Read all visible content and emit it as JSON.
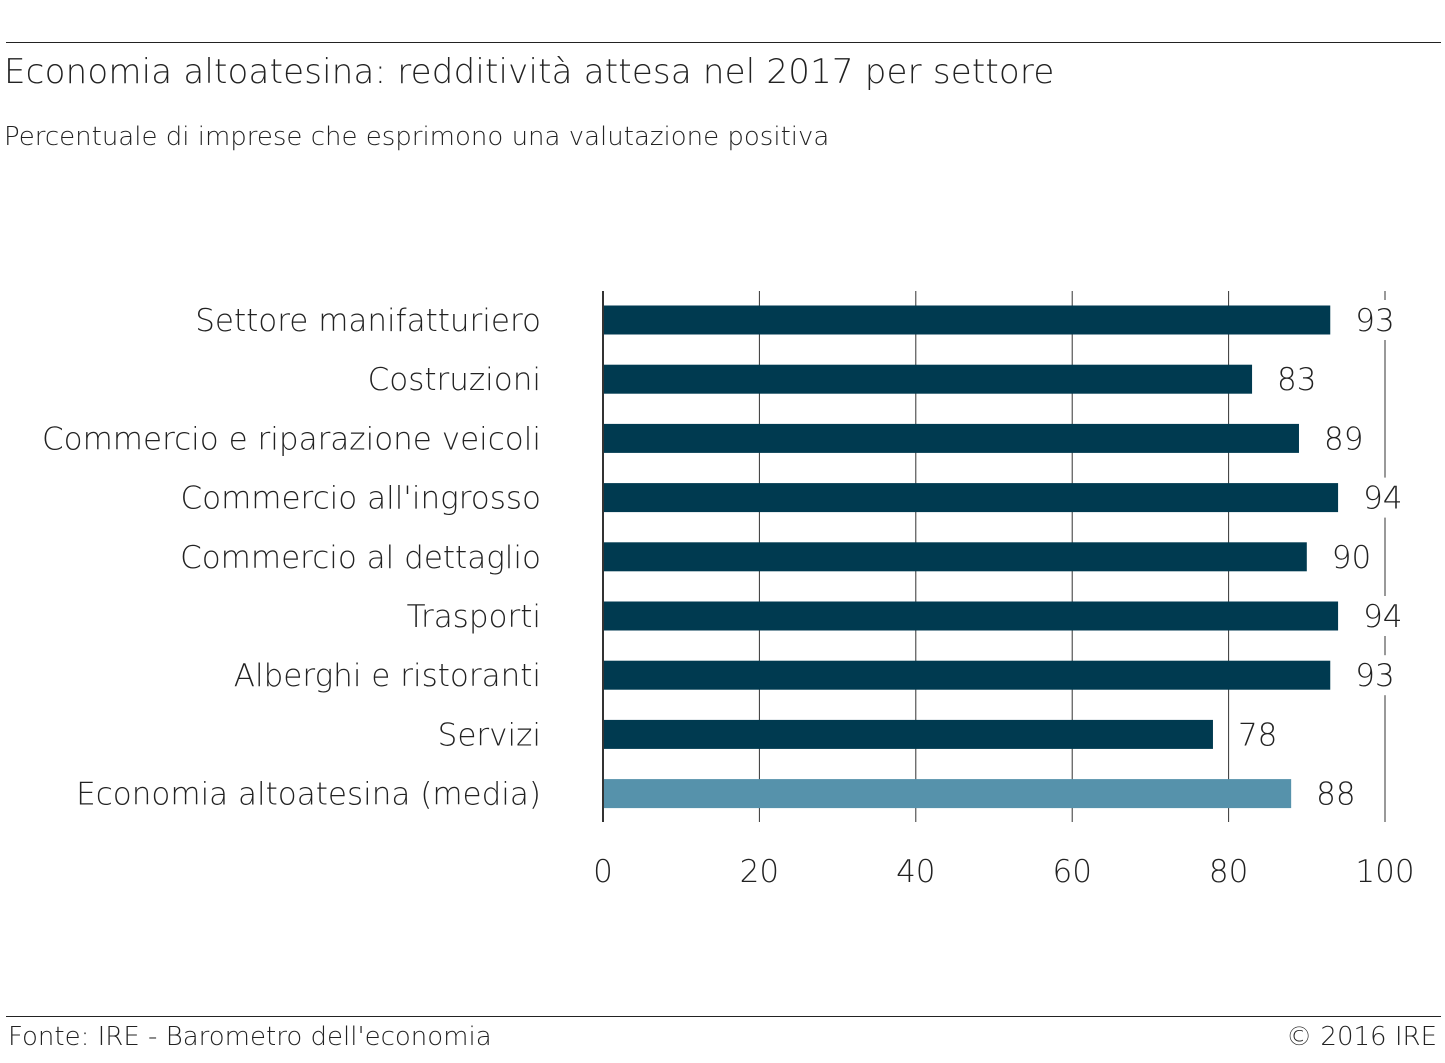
{
  "header": {
    "title": "Economia altoatesina: redditività attesa nel 2017 per settore",
    "subtitle": "Percentuale di imprese che esprimono una valutazione positiva"
  },
  "footer": {
    "source": "Fonte: IRE - Barometro dell'economia",
    "copyright": "© 2016 IRE"
  },
  "colors": {
    "bar": "#003a50",
    "highlight": "#5692ab",
    "grid": "#333333"
  },
  "chart_data": {
    "type": "bar",
    "orientation": "horizontal",
    "categories": [
      "Settore manifatturiero",
      "Costruzioni",
      "Commercio e riparazione veicoli",
      "Commercio all'ingrosso",
      "Commercio al dettaglio",
      "Trasporti",
      "Alberghi e ristoranti",
      "Servizi",
      "Economia altoatesina (media)"
    ],
    "values": [
      93,
      83,
      89,
      94,
      90,
      94,
      93,
      78,
      88
    ],
    "highlight_index": 8,
    "xlim": [
      0,
      100
    ],
    "xticks": [
      0,
      20,
      40,
      60,
      80,
      100
    ],
    "grid": true,
    "data_labels": true
  }
}
